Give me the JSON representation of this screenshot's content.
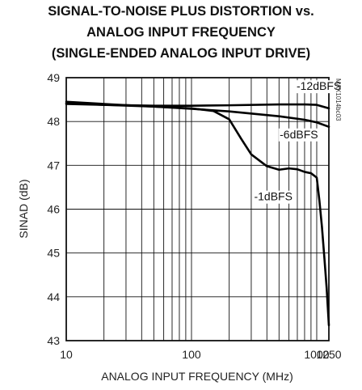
{
  "chart_data": {
    "type": "line",
    "title": [
      "SIGNAL-TO-NOISE PLUS DISTORTION vs.",
      "ANALOG INPUT FREQUENCY",
      "(SINGLE-ENDED ANALOG INPUT DRIVE)"
    ],
    "xlabel": "ANALOG INPUT FREQUENCY (MHz)",
    "ylabel": "SINAD (dB)",
    "xscale": "log",
    "xlim": [
      10,
      1250
    ],
    "ylim": [
      43,
      49
    ],
    "grid": true,
    "x_ticks": [
      {
        "value": 10,
        "label": "10"
      },
      {
        "value": 100,
        "label": "100"
      },
      {
        "value": 1000,
        "label": "1000"
      },
      {
        "value": 1250,
        "label": "1250"
      }
    ],
    "y_ticks": [
      {
        "value": 43,
        "label": "43"
      },
      {
        "value": 44,
        "label": "44"
      },
      {
        "value": 45,
        "label": "45"
      },
      {
        "value": 46,
        "label": "46"
      },
      {
        "value": 47,
        "label": "47"
      },
      {
        "value": 48,
        "label": "48"
      },
      {
        "value": 49,
        "label": "49"
      }
    ],
    "series": [
      {
        "name": "-12dBFS",
        "label_at": {
          "x": 1040,
          "y": 48.72
        },
        "points": [
          [
            10,
            48.4
          ],
          [
            20,
            48.38
          ],
          [
            50,
            48.36
          ],
          [
            100,
            48.36
          ],
          [
            200,
            48.37
          ],
          [
            500,
            48.39
          ],
          [
            800,
            48.39
          ],
          [
            1000,
            48.38
          ],
          [
            1250,
            48.3
          ]
        ]
      },
      {
        "name": "-6dBFS",
        "label_at": {
          "x": 720,
          "y": 47.62
        },
        "points": [
          [
            10,
            48.42
          ],
          [
            20,
            48.38
          ],
          [
            50,
            48.34
          ],
          [
            100,
            48.29
          ],
          [
            200,
            48.23
          ],
          [
            500,
            48.12
          ],
          [
            800,
            48.04
          ],
          [
            1000,
            47.98
          ],
          [
            1250,
            47.88
          ]
        ]
      },
      {
        "name": "-1dBFS",
        "label_at": {
          "x": 450,
          "y": 46.2
        },
        "points": [
          [
            10,
            48.45
          ],
          [
            20,
            48.4
          ],
          [
            50,
            48.34
          ],
          [
            100,
            48.3
          ],
          [
            150,
            48.24
          ],
          [
            200,
            48.05
          ],
          [
            250,
            47.6
          ],
          [
            300,
            47.25
          ],
          [
            400,
            46.98
          ],
          [
            500,
            46.9
          ],
          [
            600,
            46.93
          ],
          [
            700,
            46.91
          ],
          [
            800,
            46.85
          ],
          [
            900,
            46.82
          ],
          [
            1000,
            46.72
          ],
          [
            1050,
            46.2
          ],
          [
            1100,
            45.6
          ],
          [
            1150,
            44.9
          ],
          [
            1200,
            44.2
          ],
          [
            1250,
            43.35
          ]
        ]
      }
    ]
  },
  "watermark": "MAX1014bc03"
}
